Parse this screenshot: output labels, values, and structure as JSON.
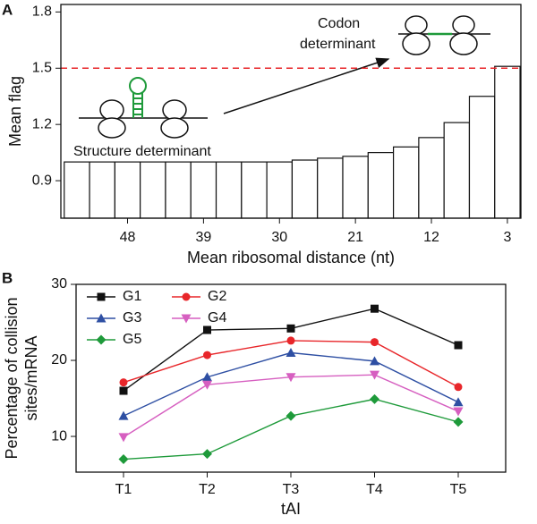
{
  "chart_data": [
    {
      "type": "bar",
      "label": "A",
      "ylabel": "Mean flag",
      "xlabel": "Mean ribosomal distance (nt)",
      "x": [
        54,
        51,
        48,
        45,
        42,
        39,
        36,
        33,
        30,
        27,
        24,
        21,
        18,
        15,
        12,
        9,
        6,
        3
      ],
      "values": [
        1.0,
        1.0,
        1.0,
        1.0,
        1.0,
        1.0,
        1.0,
        1.0,
        1.0,
        1.01,
        1.02,
        1.03,
        1.05,
        1.08,
        1.13,
        1.21,
        1.35,
        1.51
      ],
      "color": "#ffffff",
      "xlim": [
        55.9,
        1.4
      ],
      "xticks": [
        48,
        39,
        30,
        21,
        12,
        3
      ],
      "ylim": [
        0.7,
        1.84
      ],
      "yticks": [
        0.9,
        1.2,
        1.5,
        1.8
      ],
      "reference_line": {
        "value": 1.5,
        "color": "#e8262a"
      },
      "annotations": [
        "Codon",
        "determinant",
        "Structure determinant"
      ]
    },
    {
      "type": "line",
      "label": "B",
      "ylabel": [
        "Percentage of collision",
        "sites/mRNA"
      ],
      "xlabel": "tAI",
      "categories": [
        "T1",
        "T2",
        "T3",
        "T4",
        "T5"
      ],
      "series": [
        {
          "name": "G1",
          "color": "#111111",
          "marker": "square",
          "values": [
            16.0,
            24.0,
            24.2,
            26.8,
            22.0
          ]
        },
        {
          "name": "G2",
          "color": "#e8262a",
          "marker": "circle",
          "values": [
            17.1,
            20.7,
            22.6,
            22.4,
            16.5
          ]
        },
        {
          "name": "G3",
          "color": "#2e4fa3",
          "marker": "triangle",
          "values": [
            12.7,
            17.8,
            21.0,
            19.9,
            14.5
          ]
        },
        {
          "name": "G4",
          "color": "#d65fc0",
          "marker": "triangle-down",
          "values": [
            9.9,
            16.8,
            17.8,
            18.1,
            13.3
          ]
        },
        {
          "name": "G5",
          "color": "#1e9a3a",
          "marker": "diamond",
          "values": [
            7.0,
            7.7,
            12.7,
            14.9,
            11.9
          ]
        }
      ],
      "ylim": [
        5.3,
        30
      ],
      "yticks": [
        10,
        20,
        30
      ]
    }
  ]
}
